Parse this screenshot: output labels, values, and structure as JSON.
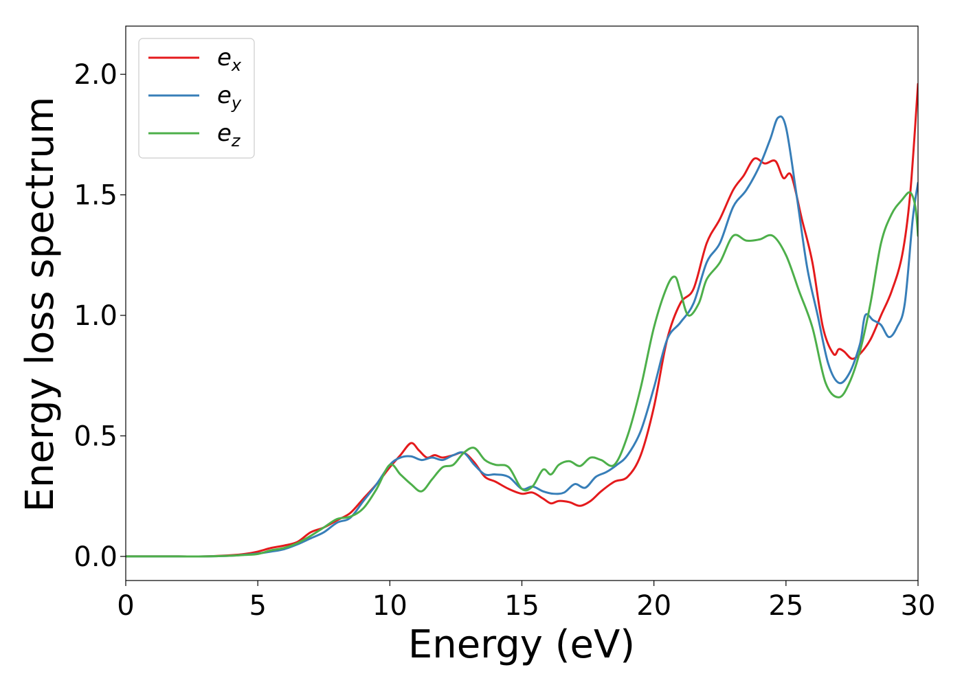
{
  "chart_data": {
    "type": "line",
    "xlabel": "Energy (eV)",
    "ylabel": "Energy loss spectrum",
    "xlim": [
      0,
      30
    ],
    "ylim": [
      -0.1,
      2.2
    ],
    "xticks": [
      0,
      5,
      10,
      15,
      20,
      25,
      30
    ],
    "xtick_labels": [
      "0",
      "5",
      "10",
      "15",
      "20",
      "25",
      "30"
    ],
    "yticks": [
      0.0,
      0.5,
      1.0,
      1.5,
      2.0
    ],
    "ytick_labels": [
      "0.0",
      "0.5",
      "1.0",
      "1.5",
      "2.0"
    ],
    "grid": false,
    "legend_position": "top-left",
    "series": [
      {
        "name": "e",
        "subscript": "x",
        "color": "#e41a1c",
        "x": [
          0,
          1,
          2,
          3,
          4,
          4.5,
          5,
          5.5,
          6,
          6.5,
          7,
          7.5,
          8,
          8.5,
          9,
          9.5,
          10,
          10.4,
          10.8,
          11.1,
          11.4,
          11.7,
          12.0,
          12.4,
          12.8,
          13.2,
          13.6,
          14.0,
          14.5,
          15.0,
          15.4,
          15.8,
          16.1,
          16.4,
          16.8,
          17.2,
          17.6,
          18.0,
          18.5,
          19.0,
          19.5,
          20.0,
          20.5,
          21.0,
          21.5,
          22.0,
          22.5,
          23.0,
          23.4,
          23.8,
          24.2,
          24.6,
          24.9,
          25.2,
          25.6,
          26.0,
          26.4,
          26.8,
          27.0,
          27.2,
          27.5,
          27.8,
          28.2,
          28.6,
          29.0,
          29.4,
          29.7,
          30.0
        ],
        "y": [
          0,
          0,
          0,
          0,
          0.005,
          0.01,
          0.02,
          0.035,
          0.045,
          0.06,
          0.1,
          0.12,
          0.15,
          0.18,
          0.24,
          0.3,
          0.37,
          0.42,
          0.47,
          0.44,
          0.41,
          0.42,
          0.41,
          0.42,
          0.43,
          0.39,
          0.33,
          0.31,
          0.28,
          0.26,
          0.265,
          0.24,
          0.22,
          0.23,
          0.225,
          0.21,
          0.23,
          0.27,
          0.31,
          0.33,
          0.42,
          0.62,
          0.9,
          1.05,
          1.11,
          1.3,
          1.4,
          1.52,
          1.58,
          1.65,
          1.63,
          1.64,
          1.57,
          1.58,
          1.4,
          1.22,
          0.95,
          0.84,
          0.86,
          0.85,
          0.82,
          0.84,
          0.9,
          1.0,
          1.1,
          1.25,
          1.5,
          1.96
        ]
      },
      {
        "name": "e",
        "subscript": "y",
        "color": "#377eb8",
        "x": [
          0,
          1,
          2,
          3,
          4,
          4.5,
          5,
          5.5,
          6,
          6.5,
          7,
          7.5,
          8,
          8.5,
          9,
          9.5,
          10,
          10.4,
          10.8,
          11.2,
          11.6,
          12.0,
          12.4,
          12.8,
          13.2,
          13.6,
          14.0,
          14.5,
          15.0,
          15.4,
          15.8,
          16.2,
          16.6,
          17.0,
          17.4,
          17.8,
          18.2,
          18.6,
          19.0,
          19.5,
          20.0,
          20.5,
          21.0,
          21.5,
          22.0,
          22.5,
          23.0,
          23.5,
          24.0,
          24.4,
          24.7,
          25.0,
          25.4,
          25.8,
          26.2,
          26.6,
          27.0,
          27.4,
          27.8,
          28.0,
          28.3,
          28.6,
          28.9,
          29.2,
          29.5,
          29.8,
          30.0
        ],
        "y": [
          0,
          0,
          0,
          0,
          0.003,
          0.007,
          0.012,
          0.02,
          0.03,
          0.05,
          0.075,
          0.1,
          0.14,
          0.16,
          0.23,
          0.3,
          0.38,
          0.41,
          0.415,
          0.4,
          0.41,
          0.4,
          0.42,
          0.43,
          0.38,
          0.34,
          0.34,
          0.33,
          0.28,
          0.29,
          0.27,
          0.26,
          0.265,
          0.3,
          0.285,
          0.33,
          0.35,
          0.38,
          0.42,
          0.52,
          0.7,
          0.9,
          0.97,
          1.05,
          1.22,
          1.3,
          1.45,
          1.52,
          1.62,
          1.73,
          1.82,
          1.78,
          1.5,
          1.2,
          1.0,
          0.8,
          0.72,
          0.76,
          0.88,
          1.0,
          0.98,
          0.96,
          0.91,
          0.95,
          1.05,
          1.4,
          1.55
        ]
      },
      {
        "name": "e",
        "subscript": "z",
        "color": "#4daf4a",
        "x": [
          0,
          1,
          2,
          3,
          4,
          4.5,
          5,
          5.5,
          6,
          6.5,
          7,
          7.5,
          8,
          8.5,
          9,
          9.5,
          10,
          10.4,
          10.8,
          11.2,
          11.6,
          12.0,
          12.4,
          12.8,
          13.2,
          13.6,
          14.0,
          14.5,
          15.0,
          15.4,
          15.8,
          16.1,
          16.4,
          16.8,
          17.2,
          17.6,
          18.0,
          18.5,
          19.0,
          19.5,
          20.0,
          20.5,
          20.8,
          21.0,
          21.3,
          21.7,
          22.0,
          22.5,
          23.0,
          23.5,
          24.0,
          24.5,
          25.0,
          25.5,
          26.0,
          26.5,
          27.0,
          27.4,
          27.8,
          28.2,
          28.6,
          29.0,
          29.4,
          29.7,
          29.9,
          30.0
        ],
        "y": [
          0,
          0,
          0,
          0,
          0.003,
          0.006,
          0.01,
          0.025,
          0.035,
          0.055,
          0.085,
          0.12,
          0.155,
          0.165,
          0.2,
          0.28,
          0.38,
          0.34,
          0.3,
          0.27,
          0.32,
          0.37,
          0.38,
          0.43,
          0.45,
          0.4,
          0.38,
          0.37,
          0.28,
          0.29,
          0.36,
          0.34,
          0.38,
          0.395,
          0.375,
          0.41,
          0.4,
          0.38,
          0.5,
          0.7,
          0.95,
          1.12,
          1.16,
          1.1,
          1.0,
          1.05,
          1.15,
          1.22,
          1.33,
          1.31,
          1.315,
          1.33,
          1.25,
          1.1,
          0.95,
          0.72,
          0.66,
          0.72,
          0.85,
          1.05,
          1.3,
          1.42,
          1.48,
          1.51,
          1.45,
          1.33
        ]
      }
    ]
  }
}
